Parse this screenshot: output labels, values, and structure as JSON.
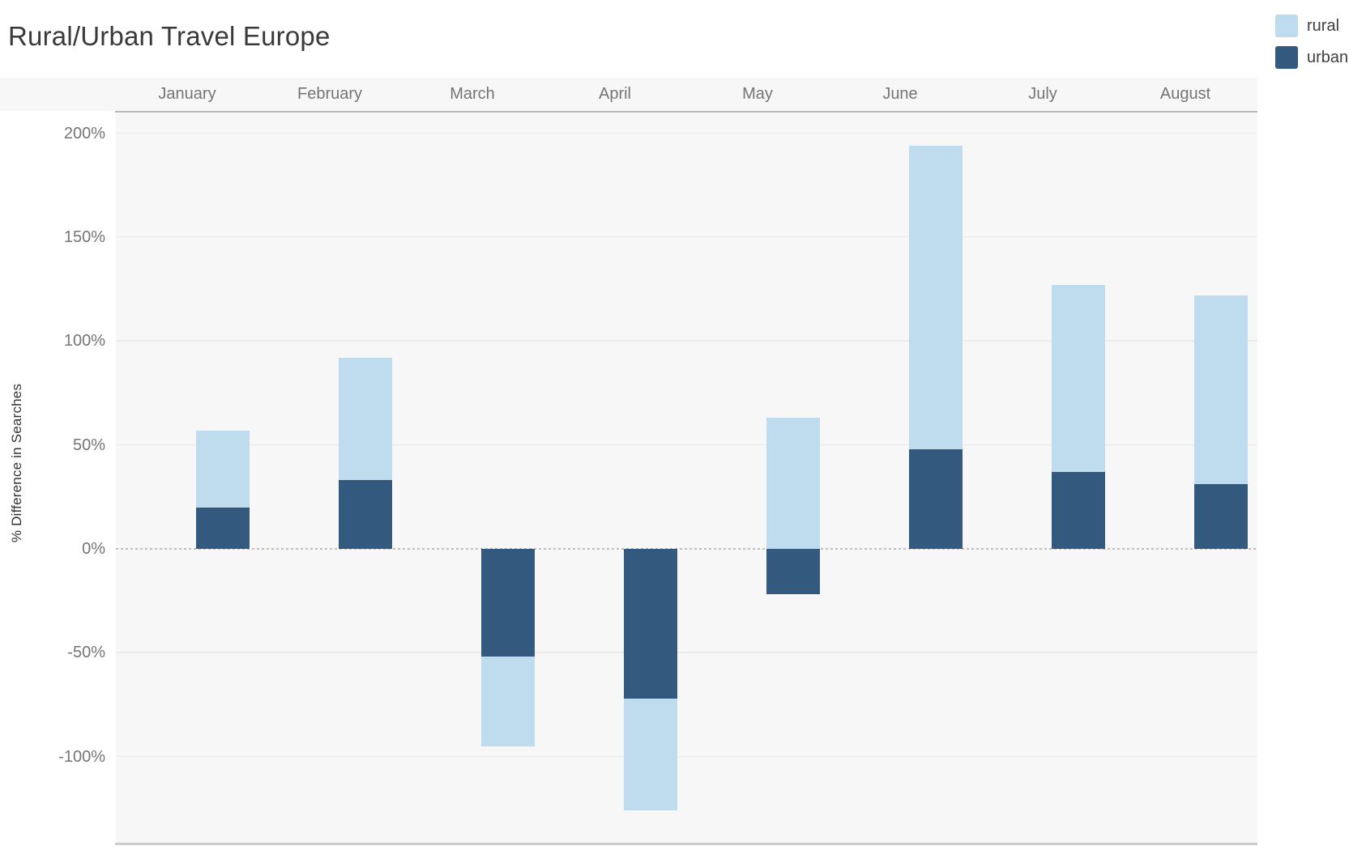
{
  "title": "Rural/Urban Travel Europe",
  "y_axis": {
    "label": "% Difference in Searches"
  },
  "colors": {
    "rural": "#BFDCEE",
    "urban": "#34597F",
    "plot_background": "#F7F7F7",
    "axis_text": "#757575",
    "title_text": "#3A3A3A"
  },
  "chart_data": {
    "type": "bar",
    "stacked": true,
    "title": "Rural/Urban Travel Europe",
    "xlabel": "",
    "ylabel": "% Difference in Searches",
    "categories": [
      "January",
      "February",
      "March",
      "April",
      "May",
      "June",
      "July",
      "August"
    ],
    "series": [
      {
        "name": "rural",
        "color": "#BFDCEE",
        "values": [
          37,
          59,
          -43,
          -54,
          63,
          146,
          90,
          91
        ]
      },
      {
        "name": "urban",
        "color": "#34597F",
        "values": [
          20,
          33,
          -52,
          -72,
          -22,
          48,
          37,
          31
        ]
      }
    ],
    "stack_order": [
      "urban",
      "rural"
    ],
    "stacked_totals": [
      57,
      92,
      -95,
      -126,
      63,
      194,
      127,
      122
    ],
    "y_ticks": [
      {
        "label": "200%",
        "value": 200
      },
      {
        "label": "150%",
        "value": 150
      },
      {
        "label": "100%",
        "value": 100
      },
      {
        "label": "50%",
        "value": 50
      },
      {
        "label": "0%",
        "value": 0
      },
      {
        "label": "-50%",
        "value": -50
      },
      {
        "label": "-100%",
        "value": -100
      }
    ],
    "ylim": [
      -141.5,
      210
    ],
    "grid": true,
    "zero_line": "dotted",
    "legend_position": "top-right",
    "legend_entries": [
      "rural",
      "urban"
    ]
  }
}
